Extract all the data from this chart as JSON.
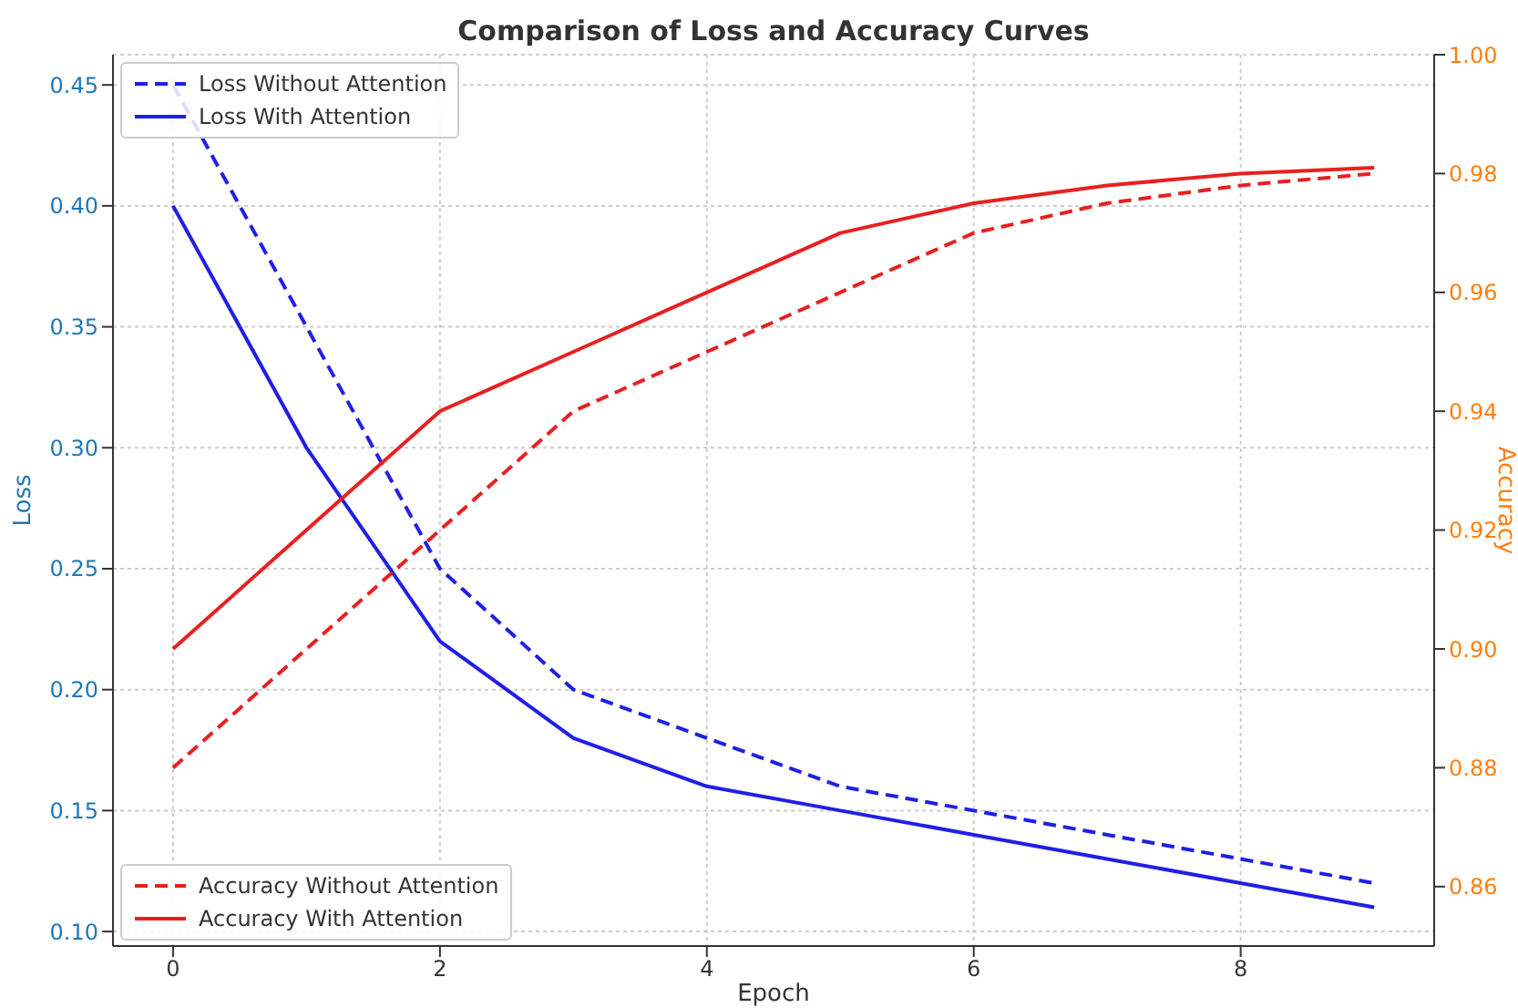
{
  "chart_data": {
    "type": "line",
    "title": "Comparison of Loss and Accuracy Curves",
    "xlabel": "Epoch",
    "ylabel": "Loss",
    "y2label": "Accuracy",
    "x": [
      0,
      1,
      2,
      3,
      4,
      5,
      6,
      7,
      8,
      9
    ],
    "series": [
      {
        "name": "Loss Without Attention",
        "color": "#1f1fe6",
        "line_style": "dashed",
        "values": [
          0.45,
          0.35,
          0.25,
          0.2,
          0.18,
          0.16,
          0.15,
          0.14,
          0.13,
          0.12
        ]
      },
      {
        "name": "Loss With Attention",
        "color": "#1f1fe6",
        "line_style": "solid",
        "values": [
          0.4,
          0.3,
          0.22,
          0.18,
          0.16,
          0.15,
          0.14,
          0.13,
          0.12,
          0.11
        ]
      },
      {
        "name": "Accuracy Without Attention",
        "color": "#e82020",
        "line_style": "dashed",
        "axis": "y2",
        "values": [
          0.88,
          0.9,
          0.92,
          0.94,
          0.95,
          0.96,
          0.97,
          0.975,
          0.978,
          0.98
        ]
      },
      {
        "name": "Accuracy With Attention",
        "color": "#e82020",
        "line_style": "solid",
        "axis": "y2",
        "values": [
          0.9,
          0.92,
          0.94,
          0.95,
          0.96,
          0.97,
          0.975,
          0.978,
          0.98,
          0.981
        ]
      }
    ],
    "xlim": [
      -0.45,
      9.45
    ],
    "xticks": [
      0,
      2,
      4,
      6,
      8
    ],
    "ylim": [
      0.094,
      0.4625
    ],
    "yticks": [
      {
        "value": 0.1,
        "label": "0.10"
      },
      0.15,
      {
        "value": 0.2,
        "label": "0.20"
      },
      0.25,
      {
        "value": 0.3,
        "label": "0.30"
      },
      0.35,
      {
        "value": 0.4,
        "label": "0.40"
      },
      0.45
    ],
    "y2lim": [
      0.85,
      1.0
    ],
    "y2ticks": [
      0.86,
      0.88,
      {
        "value": 0.9,
        "label": "0.90"
      },
      0.92,
      0.94,
      0.96,
      0.98,
      {
        "value": 1.0,
        "label": "1.00"
      }
    ],
    "grid": true,
    "legend": "left",
    "marker": "none"
  }
}
